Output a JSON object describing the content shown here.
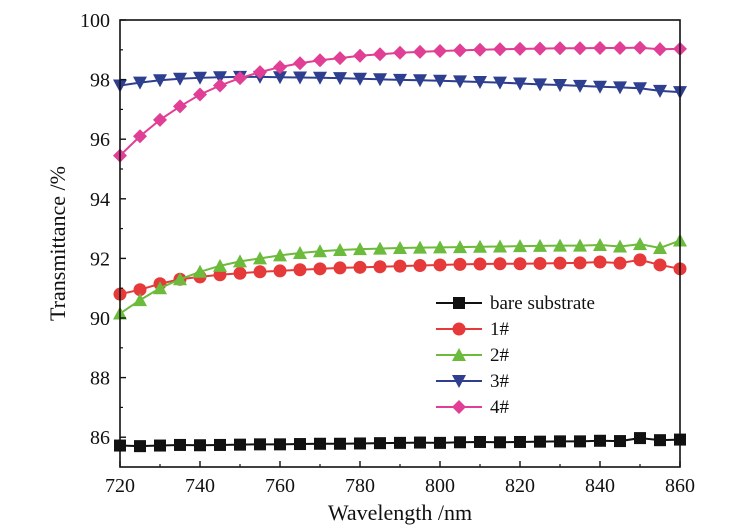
{
  "chart_data": {
    "type": "line",
    "title": "",
    "xlabel": "Wavelength /nm",
    "ylabel": "Transmittance /%",
    "xlim": [
      720,
      860
    ],
    "ylim": [
      85,
      100
    ],
    "xticks": [
      720,
      740,
      760,
      780,
      800,
      820,
      840,
      860
    ],
    "yticks": [
      86,
      88,
      90,
      92,
      94,
      96,
      98,
      100
    ],
    "x": [
      720,
      725,
      730,
      735,
      740,
      745,
      750,
      755,
      760,
      765,
      770,
      775,
      780,
      785,
      790,
      795,
      800,
      805,
      810,
      815,
      820,
      825,
      830,
      835,
      840,
      845,
      850,
      855,
      860
    ],
    "legend_position": "lower-right",
    "series": [
      {
        "name": "bare substrate",
        "marker": "square",
        "color": "#111111",
        "values": [
          85.72,
          85.7,
          85.72,
          85.74,
          85.73,
          85.74,
          85.75,
          85.76,
          85.76,
          85.77,
          85.78,
          85.78,
          85.79,
          85.8,
          85.81,
          85.82,
          85.81,
          85.83,
          85.84,
          85.83,
          85.84,
          85.85,
          85.86,
          85.86,
          85.88,
          85.87,
          85.97,
          85.9,
          85.92
        ]
      },
      {
        "name": "1#",
        "marker": "circle",
        "color": "#e63a3a",
        "values": [
          90.8,
          90.95,
          91.15,
          91.3,
          91.38,
          91.45,
          91.5,
          91.55,
          91.58,
          91.62,
          91.65,
          91.68,
          91.7,
          91.72,
          91.74,
          91.76,
          91.78,
          91.8,
          91.81,
          91.82,
          91.82,
          91.83,
          91.84,
          91.85,
          91.88,
          91.84,
          91.95,
          91.78,
          91.65
        ]
      },
      {
        "name": "2#",
        "marker": "triangle-up",
        "color": "#6cbb3c",
        "values": [
          90.15,
          90.6,
          91.0,
          91.3,
          91.55,
          91.75,
          91.9,
          92.0,
          92.1,
          92.18,
          92.24,
          92.28,
          92.31,
          92.33,
          92.35,
          92.36,
          92.37,
          92.38,
          92.39,
          92.4,
          92.41,
          92.42,
          92.43,
          92.43,
          92.45,
          92.4,
          92.48,
          92.35,
          92.6
        ]
      },
      {
        "name": "3#",
        "marker": "triangle-down",
        "color": "#2e3f8f",
        "values": [
          97.8,
          97.9,
          97.98,
          98.03,
          98.06,
          98.08,
          98.09,
          98.09,
          98.08,
          98.07,
          98.06,
          98.05,
          98.03,
          98.01,
          97.99,
          97.98,
          97.96,
          97.94,
          97.92,
          97.9,
          97.87,
          97.84,
          97.82,
          97.79,
          97.76,
          97.74,
          97.71,
          97.62,
          97.58
        ]
      },
      {
        "name": "4#",
        "marker": "diamond",
        "color": "#e03f95",
        "values": [
          95.45,
          96.1,
          96.65,
          97.1,
          97.5,
          97.8,
          98.05,
          98.25,
          98.42,
          98.55,
          98.65,
          98.72,
          98.8,
          98.85,
          98.9,
          98.93,
          98.96,
          98.98,
          99.0,
          99.02,
          99.03,
          99.04,
          99.05,
          99.05,
          99.06,
          99.06,
          99.07,
          99.02,
          99.03
        ]
      }
    ]
  }
}
